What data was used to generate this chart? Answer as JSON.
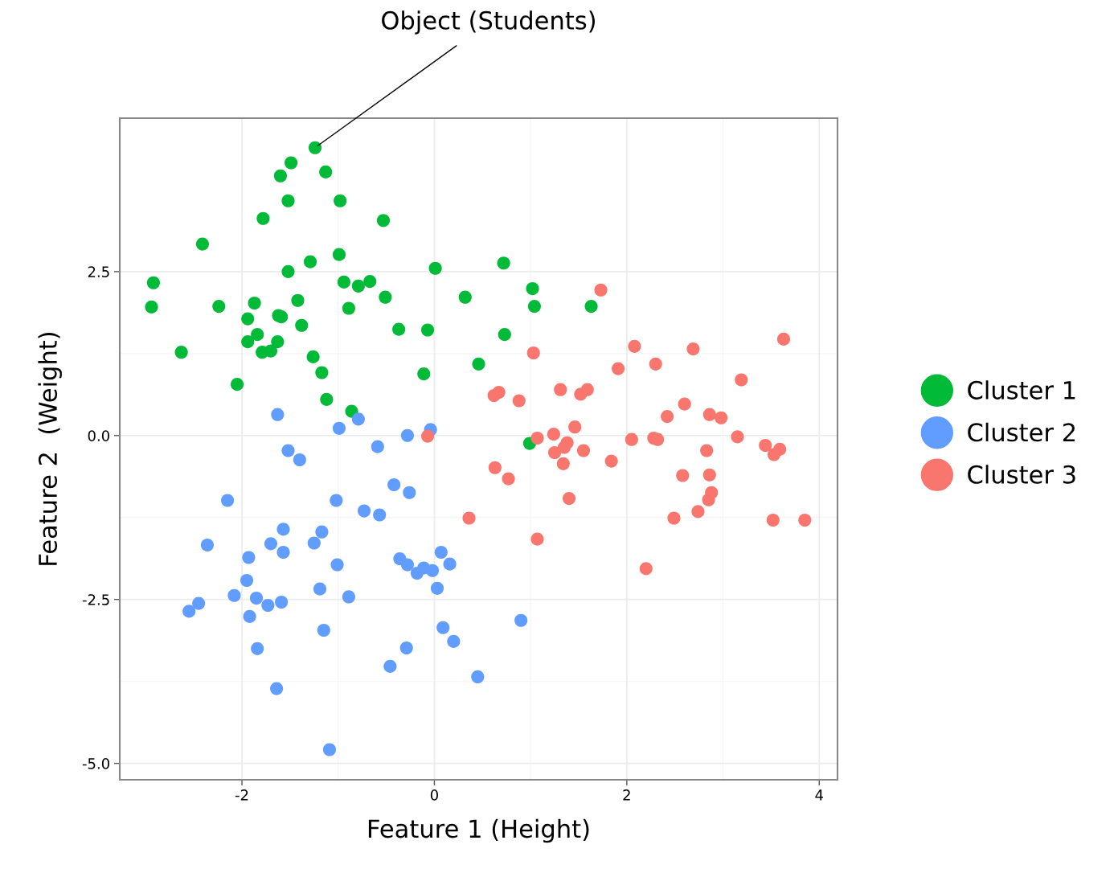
{
  "chart_data": {
    "type": "scatter",
    "xlabel": "Feature 1 (Height)",
    "ylabel": "Feature 2  (Weight)",
    "xlim": [
      -3.27,
      4.19
    ],
    "ylim": [
      -5.25,
      4.84
    ],
    "xticks": [
      -2,
      0,
      2,
      4
    ],
    "yticks": [
      {
        "value": -5,
        "label": "-5.0"
      },
      {
        "value": -2.5,
        "label": "-2.5"
      },
      {
        "value": 0,
        "label": "0.0"
      },
      {
        "value": 2.5,
        "label": "2.5"
      }
    ],
    "grid": true,
    "legend": "right",
    "marker": "circle",
    "annotations": [
      {
        "text": "Object (Students)",
        "x": -1.24,
        "y": 4.39
      }
    ],
    "series": [
      {
        "name": "Cluster 1",
        "color": "#00ba38",
        "x": [
          -1.24,
          -1.49,
          -1.6,
          -1.13,
          -1.52,
          -0.98,
          -1.78,
          -0.53,
          -2.41,
          -2.92,
          -2.94,
          -2.63,
          -2.24,
          -2.05,
          -1.52,
          -1.29,
          -0.99,
          -0.94,
          -0.79,
          -0.67,
          -1.42,
          -1.87,
          -1.94,
          -1.62,
          -1.59,
          -1.38,
          -1.84,
          -1.94,
          -1.63,
          -1.79,
          -1.7,
          -1.26,
          -1.17,
          -1.12,
          -0.86,
          -0.89,
          -0.51,
          -0.37,
          -0.07,
          -0.11,
          0.01,
          0.32,
          0.46,
          0.72,
          0.73,
          1.02,
          1.04,
          1.63,
          0.99
        ],
        "values": [
          4.39,
          4.16,
          3.96,
          4.02,
          3.58,
          3.58,
          3.31,
          3.28,
          2.92,
          2.33,
          1.96,
          1.27,
          1.97,
          0.78,
          2.5,
          2.65,
          2.76,
          2.34,
          2.28,
          2.35,
          2.06,
          2.02,
          1.78,
          1.83,
          1.81,
          1.68,
          1.54,
          1.43,
          1.43,
          1.27,
          1.29,
          1.2,
          0.96,
          0.55,
          0.37,
          1.94,
          2.11,
          1.62,
          1.61,
          0.94,
          2.55,
          2.11,
          1.09,
          2.63,
          1.54,
          2.24,
          1.97,
          1.97,
          -0.12
        ]
      },
      {
        "name": "Cluster 2",
        "color": "#619cff",
        "x": [
          -1.63,
          -0.79,
          -0.99,
          -0.28,
          -0.04,
          -1.52,
          -1.4,
          -0.59,
          -2.15,
          -1.02,
          -0.42,
          -0.26,
          -0.73,
          -0.57,
          -1.57,
          -1.17,
          -1.25,
          -1.7,
          -1.57,
          -2.36,
          -1.93,
          -1.95,
          -2.08,
          -1.85,
          -1.73,
          -1.59,
          -2.45,
          -2.55,
          -1.92,
          -1.19,
          -1.01,
          -0.89,
          -1.15,
          -1.84,
          -1.64,
          -1.09,
          -0.36,
          -0.28,
          -0.18,
          -0.11,
          -0.02,
          0.07,
          0.16,
          0.03,
          0.09,
          0.2,
          -0.29,
          -0.46,
          0.45,
          0.9
        ],
        "values": [
          0.32,
          0.25,
          0.11,
          0.0,
          0.09,
          -0.23,
          -0.37,
          -0.17,
          -0.99,
          -0.99,
          -0.75,
          -0.87,
          -1.15,
          -1.21,
          -1.43,
          -1.47,
          -1.64,
          -1.65,
          -1.78,
          -1.67,
          -1.86,
          -2.21,
          -2.44,
          -2.48,
          -2.59,
          -2.54,
          -2.56,
          -2.68,
          -2.76,
          -2.34,
          -1.97,
          -2.46,
          -2.97,
          -3.25,
          -3.86,
          -4.79,
          -1.88,
          -1.97,
          -2.1,
          -2.02,
          -2.06,
          -1.78,
          -1.96,
          -2.33,
          -2.93,
          -3.14,
          -3.24,
          -3.52,
          -3.68,
          -2.82
        ]
      },
      {
        "name": "Cluster 3",
        "color": "#f8766d",
        "x": [
          1.73,
          1.03,
          2.08,
          1.91,
          2.3,
          2.69,
          3.63,
          3.19,
          0.62,
          0.67,
          0.88,
          1.31,
          1.52,
          1.59,
          2.6,
          2.42,
          2.86,
          2.98,
          1.07,
          1.24,
          1.46,
          1.25,
          1.35,
          1.38,
          1.55,
          1.34,
          2.05,
          2.28,
          2.32,
          3.15,
          2.83,
          3.44,
          3.59,
          3.53,
          -0.07,
          0.63,
          0.77,
          1.84,
          1.4,
          2.58,
          2.86,
          2.88,
          2.85,
          2.74,
          2.49,
          0.36,
          3.52,
          3.85,
          1.07,
          2.2
        ],
        "values": [
          2.22,
          1.26,
          1.36,
          1.02,
          1.09,
          1.32,
          1.47,
          0.85,
          0.61,
          0.66,
          0.53,
          0.7,
          0.63,
          0.7,
          0.48,
          0.29,
          0.32,
          0.27,
          -0.04,
          0.02,
          0.13,
          -0.26,
          -0.18,
          -0.11,
          -0.23,
          -0.43,
          -0.06,
          -0.04,
          -0.06,
          -0.02,
          -0.23,
          -0.15,
          -0.21,
          -0.29,
          -0.01,
          -0.49,
          -0.66,
          -0.39,
          -0.96,
          -0.61,
          -0.6,
          -0.87,
          -0.98,
          -1.16,
          -1.26,
          -1.26,
          -1.29,
          -1.29,
          -1.58,
          -2.03
        ]
      }
    ]
  }
}
